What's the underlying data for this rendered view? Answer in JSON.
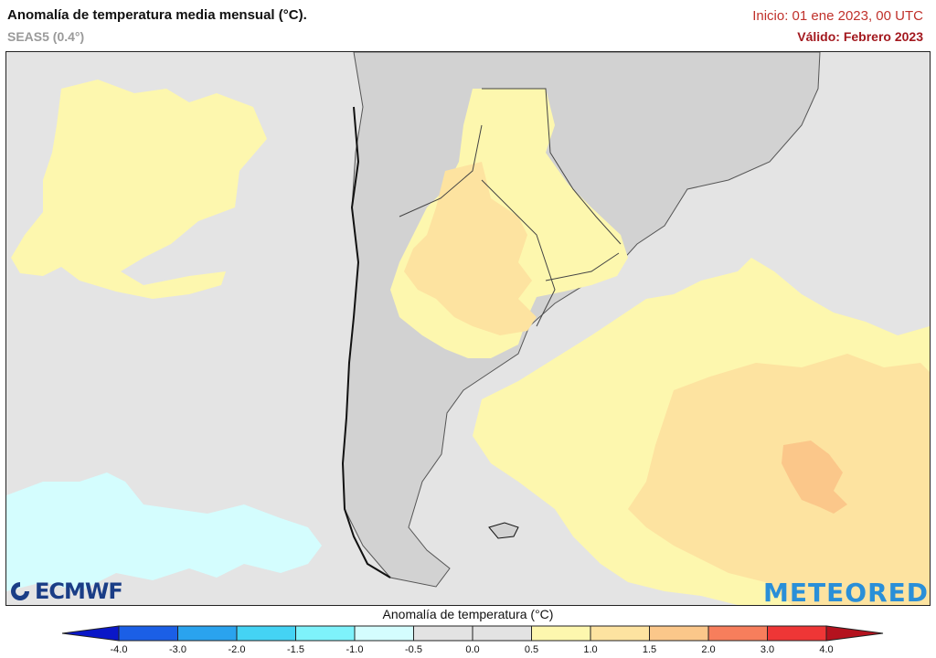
{
  "header": {
    "title": "Anomalía de temperatura media mensual (°C).",
    "subtitle": "SEAS5 (0.4°)",
    "init": "Inicio: 01 ene 2023, 00 UTC",
    "valid": "Válido: Febrero 2023"
  },
  "logos": {
    "left": "ECMWF",
    "right": "METEORED"
  },
  "colorbar": {
    "title": "Anomalía de temperatura (°C)",
    "labels": [
      "-4.0",
      "-3.0",
      "-2.0",
      "-1.5",
      "-1.0",
      "-0.5",
      "0.0",
      "0.5",
      "1.0",
      "1.5",
      "2.0",
      "3.0",
      "4.0"
    ],
    "colors": [
      "#0a17c8",
      "#1b5fe6",
      "#2aa3ee",
      "#44d3f4",
      "#7ef2fb",
      "#d4fdfe",
      "#e3e3e3",
      "#e3e3e3",
      "#fdf7ae",
      "#fde3a0",
      "#fbc78a",
      "#f77e5c",
      "#ee3636",
      "#b4121e"
    ],
    "end_low_color": "#0a17c8",
    "end_high_color": "#b4121e"
  },
  "map_colors": {
    "background": "#e4e4e4",
    "land": "#d2d2d2",
    "anomaly_0_5_1_0": "#fdf7ae",
    "anomaly_1_0_1_5": "#fde3a0",
    "anomaly_1_5_2_0": "#fbc78a",
    "anomaly_negative": "#d4fdfe",
    "borders": "#333333"
  }
}
